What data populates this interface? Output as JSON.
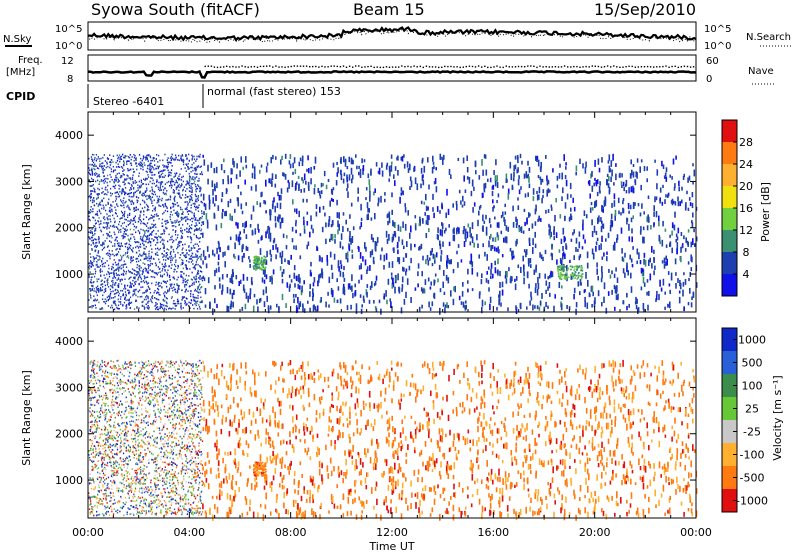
{
  "header": {
    "station": "Syowa South (fitACF)",
    "beam": "Beam 15",
    "date": "15/Sep/2010"
  },
  "top_panels": {
    "nsky_label": "N.Sky",
    "nsky_ticks": [
      "10^5",
      "10^0"
    ],
    "nsearch_label": "N.Search",
    "nsearch_ticks": [
      "10^5",
      "10^0"
    ],
    "freq_label": "Freq.",
    "freq_unit": "[MHz]",
    "freq_ticks": [
      "12",
      "8"
    ],
    "nave_label": "Nave",
    "nave_ticks": [
      "60",
      "0"
    ],
    "cpid_label": "CPID",
    "cpid_segments": [
      {
        "name": "Stereo -6401",
        "start_hour": 0.0,
        "end_hour": 4.5
      },
      {
        "name": "normal (fast stereo) 153",
        "start_hour": 4.5,
        "end_hour": 24.0
      }
    ]
  },
  "chart_data": [
    {
      "type": "heatmap",
      "title": "",
      "xlabel": "Time UT",
      "ylabel": "Slant Range [km]",
      "xlim_hours": [
        0,
        24
      ],
      "ylim": [
        180,
        4500
      ],
      "x_ticks": [
        "00:00",
        "04:00",
        "08:00",
        "12:00",
        "16:00",
        "20:00",
        "00:00"
      ],
      "y_ticks": [
        1000,
        2000,
        3000,
        4000
      ],
      "colorbar": {
        "label": "Power [dB]",
        "ticks": [
          "28",
          "24",
          "20",
          "16",
          "12",
          "8",
          "4"
        ],
        "colors": [
          "#e01010",
          "#ff7a10",
          "#ffb030",
          "#f0e010",
          "#70d040",
          "#3a9070",
          "#1e3fb0",
          "#1010e8"
        ]
      },
      "scatter_regions": [
        {
          "t_start": 0.0,
          "t_end": 4.5,
          "r_min": 250,
          "r_max": 3600,
          "density": "dense",
          "dominant": "blue"
        },
        {
          "t_start": 4.5,
          "t_end": 24.0,
          "r_min": 250,
          "r_max": 3600,
          "density": "sparse",
          "dominant": "blue"
        },
        {
          "t_start": 6.5,
          "t_end": 7.0,
          "r_min": 1100,
          "r_max": 1400,
          "density": "patch",
          "dominant": "green"
        },
        {
          "t_start": 18.5,
          "t_end": 19.5,
          "r_min": 900,
          "r_max": 1200,
          "density": "patch",
          "dominant": "green"
        }
      ]
    },
    {
      "type": "heatmap",
      "title": "",
      "xlabel": "Time UT",
      "ylabel": "Slant Range [km]",
      "xlim_hours": [
        0,
        24
      ],
      "ylim": [
        180,
        4500
      ],
      "x_ticks": [
        "00:00",
        "04:00",
        "08:00",
        "12:00",
        "16:00",
        "20:00",
        "00:00"
      ],
      "y_ticks": [
        1000,
        2000,
        3000,
        4000
      ],
      "colorbar": {
        "label": "Velocity [m s⁻¹]",
        "ticks": [
          "1000",
          "500",
          "100",
          "25",
          "-25",
          "-100",
          "-500",
          "-1000"
        ],
        "colors": [
          "#1028c8",
          "#2860d8",
          "#3c8c4c",
          "#66c836",
          "#c8c8c8",
          "#ffb030",
          "#ff7a10",
          "#e01010"
        ]
      },
      "scatter_regions": [
        {
          "t_start": 0.0,
          "t_end": 4.5,
          "r_min": 250,
          "r_max": 3600,
          "density": "dense",
          "dominant": "mixed"
        },
        {
          "t_start": 4.5,
          "t_end": 24.0,
          "r_min": 250,
          "r_max": 3600,
          "density": "sparse",
          "dominant": "orange"
        },
        {
          "t_start": 6.5,
          "t_end": 7.0,
          "r_min": 1100,
          "r_max": 1400,
          "density": "patch",
          "dominant": "orange"
        }
      ]
    }
  ]
}
